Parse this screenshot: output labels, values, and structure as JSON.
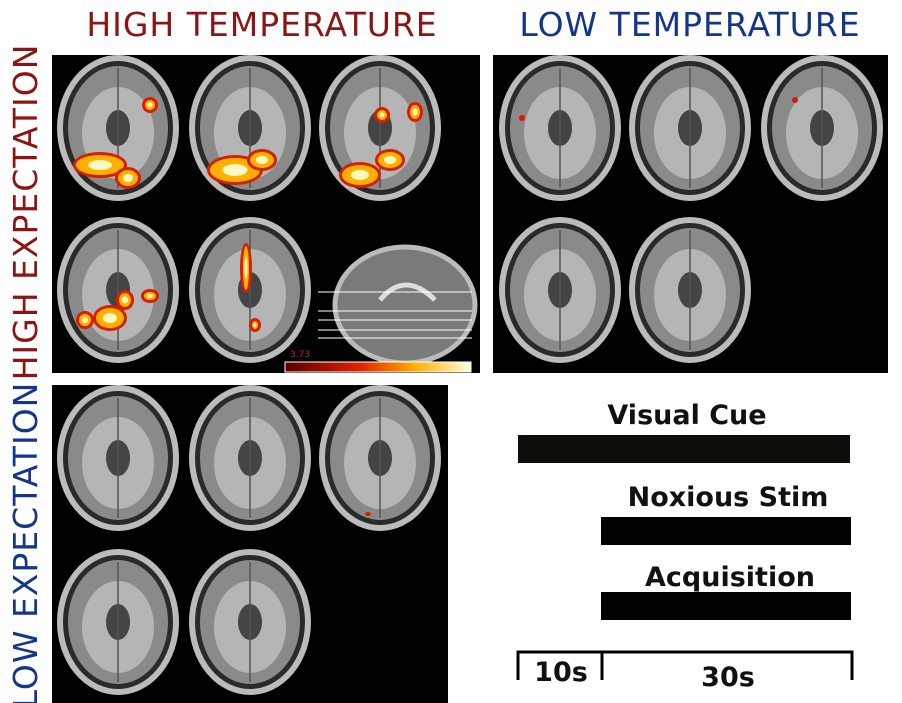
{
  "header": {
    "columns": [
      "HIGH TEMPERATURE",
      "LOW TEMPERATURE"
    ],
    "rows": [
      "HIGH EXPECTATION",
      "LOW EXPECTATION"
    ]
  },
  "colorbar": {
    "min_label": "3.73"
  },
  "timeline": {
    "events": [
      "Visual Cue",
      "Noxious Stim",
      "Acquisition"
    ],
    "durations": [
      "10s",
      "30s"
    ]
  }
}
